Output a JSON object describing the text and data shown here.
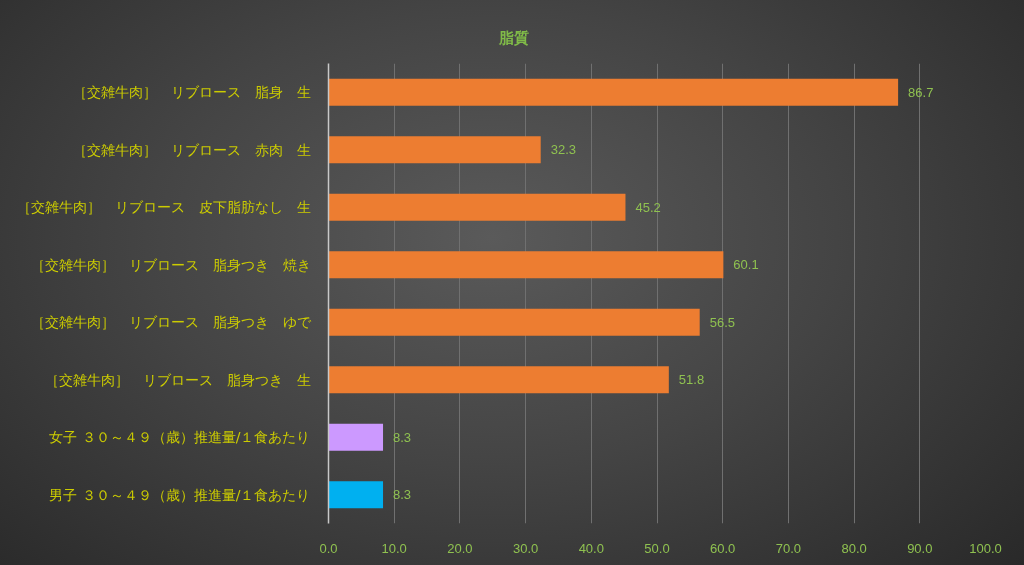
{
  "chart_data": {
    "type": "bar",
    "orientation": "horizontal",
    "title": "脂質",
    "categories": [
      "［交雑牛肉］　リブロース　脂身　生",
      "［交雑牛肉］　リブロース　赤肉　生",
      "［交雑牛肉］　リブロース　皮下脂肪なし　生",
      "［交雑牛肉］　リブロース　脂身つき　焼き",
      "［交雑牛肉］　リブロース　脂身つき　ゆで",
      "［交雑牛肉］　リブロース　脂身つき　生",
      "女子 ３０～４９（歳）推進量/１食あたり",
      "男子 ３０～４９（歳）推進量/１食あたり"
    ],
    "values": [
      86.7,
      32.3,
      45.2,
      60.1,
      56.5,
      51.8,
      8.3,
      8.3
    ],
    "colors": [
      "#ed7d31",
      "#ed7d31",
      "#ed7d31",
      "#ed7d31",
      "#ed7d31",
      "#ed7d31",
      "#cc99ff",
      "#00b0f0"
    ],
    "xlim": [
      0,
      100
    ],
    "xticks": [
      {
        "value": 0,
        "label": "0.0"
      },
      {
        "value": 10,
        "label": "10.0"
      },
      {
        "value": 20,
        "label": "20.0"
      },
      {
        "value": 30,
        "label": "30.0"
      },
      {
        "value": 40,
        "label": "40.0"
      },
      {
        "value": 50,
        "label": "50.0"
      },
      {
        "value": 60,
        "label": "60.0"
      },
      {
        "value": 70,
        "label": "70.0"
      },
      {
        "value": 80,
        "label": "80.0"
      },
      {
        "value": 90,
        "label": "90.0"
      },
      {
        "value": 100,
        "label": "100.0"
      }
    ],
    "grid": "x",
    "data_labels": true
  }
}
